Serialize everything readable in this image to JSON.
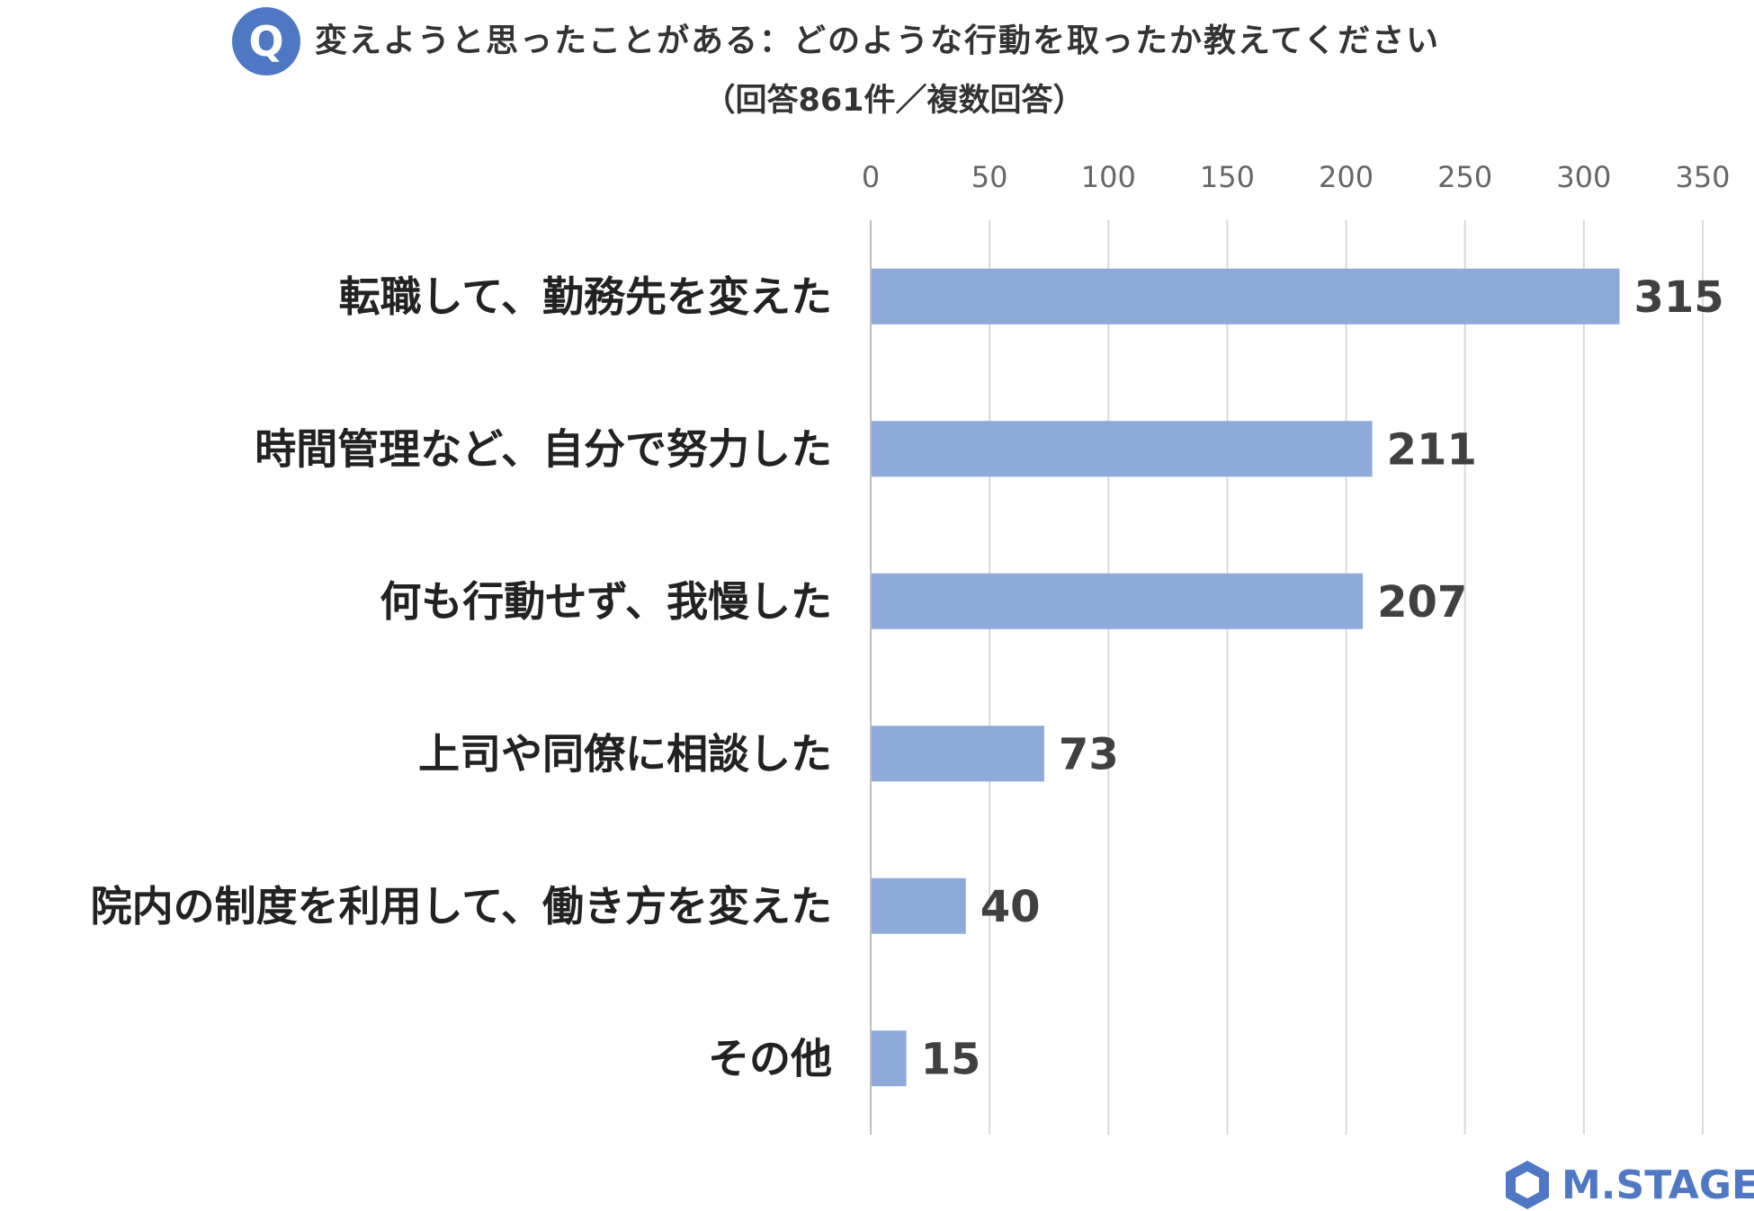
{
  "header": {
    "badge": "Q",
    "title": "変えようと思ったことがある：どのような行動を取ったか教えてください",
    "subtitle": "（回答861件／複数回答）"
  },
  "brand": {
    "logo_text": "M.STAGE",
    "color": "#4f78c4"
  },
  "colors": {
    "bar": "#8eaadb",
    "grid": "#d9d9d9",
    "axis": "#bfbfbf",
    "tick_text": "#666666",
    "label_text": "#222222"
  },
  "chart_data": {
    "type": "bar",
    "orientation": "horizontal",
    "title": "変えようと思ったことがある：どのような行動を取ったか教えてください",
    "subtitle": "（回答861件／複数回答）",
    "categories": [
      "転職して、勤務先を変えた",
      "時間管理など、自分で努力した",
      "何も行動せず、我慢した",
      "上司や同僚に相談した",
      "院内の制度を利用して、働き方を変えた",
      "その他"
    ],
    "values": [
      315,
      211,
      207,
      73,
      40,
      15
    ],
    "data_labels": [
      "315",
      "211",
      "207",
      "73",
      "40",
      "15"
    ],
    "xlim": [
      0,
      350
    ],
    "xticks": [
      0,
      50,
      100,
      150,
      200,
      250,
      300,
      350
    ],
    "xtick_labels": [
      "0",
      "50",
      "100",
      "150",
      "200",
      "250",
      "300",
      "350"
    ],
    "xaxis_position": "top",
    "grid": true,
    "legend": "none"
  }
}
